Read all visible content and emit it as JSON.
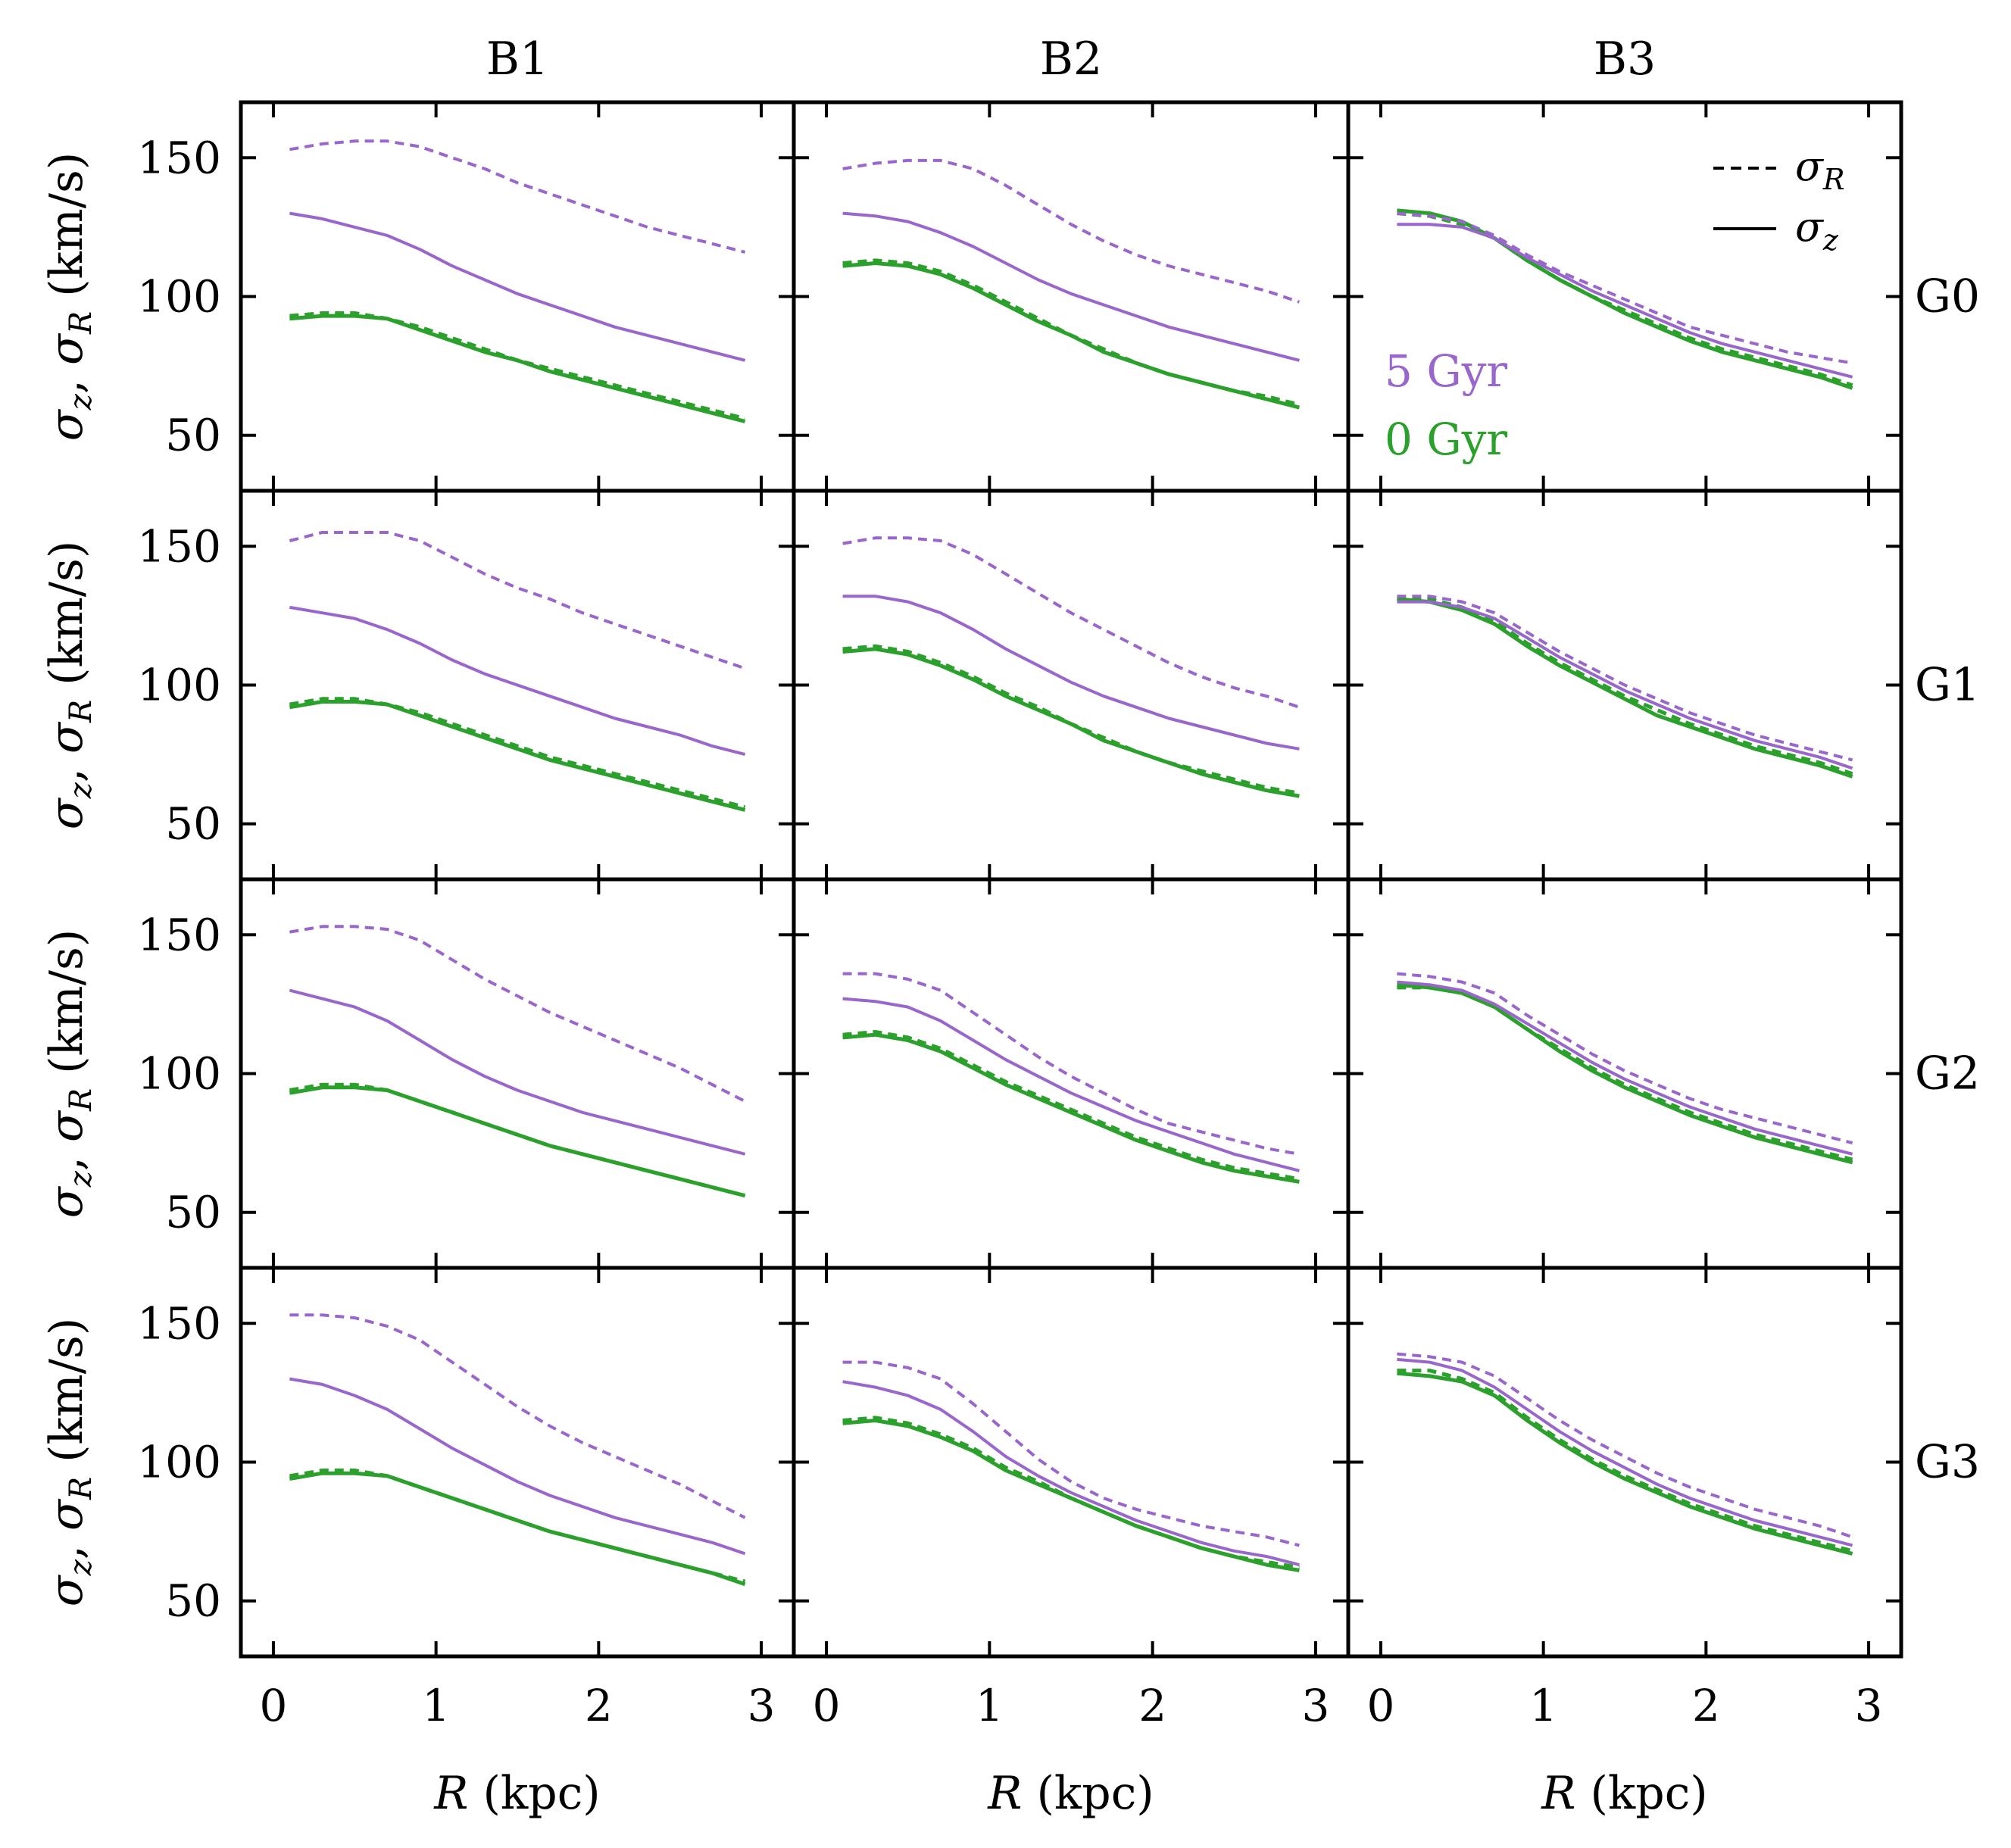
{
  "chart_data": {
    "type": "line",
    "layout": "grid 4 rows x 3 columns, shared axes",
    "column_titles": [
      "B1",
      "B2",
      "B3"
    ],
    "row_labels": [
      "G0",
      "G1",
      "G2",
      "G3"
    ],
    "xlabel": {
      "italic": "R",
      "rest": " (kpc)"
    },
    "ylabel": {
      "s1": "σ",
      "s1sub": "z",
      "sep": ", ",
      "s2": "σ",
      "s2sub": "R",
      "rest": " (km/s)"
    },
    "xlim": [
      -0.2,
      3.2
    ],
    "ylim": [
      30,
      170
    ],
    "xticks": [
      0,
      1,
      2,
      3
    ],
    "yticks": [
      50,
      100,
      150
    ],
    "grid": false,
    "colors": {
      "age_5": "#9966cc",
      "age_0": "#2ca02c"
    },
    "legend": {
      "placement": "top-right (panel B3/G0)",
      "entries": [
        {
          "sym": "σ",
          "sub": "R",
          "style": "dashed"
        },
        {
          "sym": "σ",
          "sub": "z",
          "style": "solid"
        }
      ]
    },
    "age_labels": [
      {
        "text": "5 Gyr",
        "color_key": "age_5"
      },
      {
        "text": "0 Gyr",
        "color_key": "age_0"
      }
    ],
    "x": [
      0.1,
      0.3,
      0.5,
      0.7,
      0.9,
      1.1,
      1.3,
      1.5,
      1.7,
      1.9,
      2.1,
      2.3,
      2.5,
      2.7,
      2.9
    ],
    "panels": [
      [
        {
          "s5R": [
            153,
            155,
            156,
            156,
            154,
            150,
            146,
            141,
            137,
            133,
            129,
            125,
            122,
            119,
            116
          ],
          "s5z": [
            130,
            128,
            125,
            122,
            117,
            111,
            106,
            101,
            97,
            93,
            89,
            86,
            83,
            80,
            77
          ],
          "s0R": [
            93,
            94,
            94,
            92,
            89,
            85,
            81,
            77,
            74,
            71,
            68,
            65,
            62,
            59,
            56
          ],
          "s0z": [
            92,
            93,
            93,
            92,
            88,
            84,
            80,
            77,
            73,
            70,
            67,
            64,
            61,
            58,
            55
          ]
        },
        {
          "s5R": [
            146,
            148,
            149,
            149,
            146,
            140,
            133,
            126,
            120,
            115,
            111,
            108,
            105,
            102,
            98
          ],
          "s5z": [
            130,
            129,
            127,
            123,
            118,
            112,
            106,
            101,
            97,
            93,
            89,
            86,
            83,
            80,
            77
          ],
          "s0R": [
            112,
            113,
            112,
            109,
            104,
            98,
            92,
            86,
            81,
            76,
            72,
            69,
            66,
            64,
            61
          ],
          "s0z": [
            111,
            112,
            111,
            108,
            103,
            97,
            91,
            86,
            80,
            76,
            72,
            69,
            66,
            63,
            60
          ]
        },
        {
          "s5R": [
            130,
            129,
            127,
            122,
            115,
            109,
            104,
            99,
            94,
            89,
            86,
            83,
            80,
            78,
            76
          ],
          "s5z": [
            126,
            126,
            125,
            121,
            114,
            108,
            102,
            97,
            92,
            87,
            83,
            80,
            77,
            74,
            71
          ],
          "s0R": [
            130,
            129,
            126,
            121,
            113,
            106,
            100,
            95,
            90,
            85,
            81,
            78,
            75,
            72,
            68
          ],
          "s0z": [
            131,
            130,
            127,
            121,
            113,
            106,
            100,
            94,
            89,
            84,
            80,
            77,
            74,
            71,
            67
          ]
        }
      ],
      [
        {
          "s5R": [
            152,
            155,
            155,
            155,
            152,
            146,
            140,
            135,
            131,
            126,
            122,
            118,
            114,
            110,
            106
          ],
          "s5z": [
            128,
            126,
            124,
            120,
            115,
            109,
            104,
            100,
            96,
            92,
            88,
            85,
            82,
            78,
            75
          ],
          "s0R": [
            93,
            95,
            95,
            93,
            90,
            86,
            82,
            78,
            74,
            71,
            68,
            65,
            62,
            59,
            56
          ],
          "s0z": [
            92,
            94,
            94,
            93,
            89,
            85,
            81,
            77,
            73,
            70,
            67,
            64,
            61,
            58,
            55
          ]
        },
        {
          "s5R": [
            151,
            153,
            153,
            152,
            147,
            140,
            133,
            126,
            120,
            114,
            108,
            103,
            99,
            96,
            92
          ],
          "s5z": [
            132,
            132,
            130,
            126,
            120,
            113,
            107,
            101,
            96,
            92,
            88,
            85,
            82,
            79,
            77
          ],
          "s0R": [
            113,
            114,
            112,
            108,
            103,
            97,
            92,
            86,
            81,
            76,
            72,
            69,
            66,
            63,
            61
          ],
          "s0z": [
            112,
            113,
            111,
            107,
            102,
            96,
            91,
            86,
            80,
            76,
            72,
            68,
            65,
            62,
            60
          ]
        },
        {
          "s5R": [
            132,
            132,
            130,
            126,
            119,
            112,
            106,
            100,
            95,
            90,
            86,
            82,
            79,
            76,
            73
          ],
          "s5z": [
            130,
            130,
            128,
            124,
            117,
            110,
            104,
            98,
            93,
            88,
            84,
            80,
            77,
            74,
            70
          ],
          "s0R": [
            131,
            131,
            128,
            123,
            115,
            108,
            102,
            96,
            91,
            86,
            82,
            78,
            75,
            72,
            68
          ],
          "s0z": [
            131,
            130,
            127,
            122,
            114,
            107,
            101,
            95,
            89,
            85,
            81,
            77,
            74,
            71,
            67
          ]
        }
      ],
      [
        {
          "s5R": [
            151,
            153,
            153,
            152,
            148,
            141,
            134,
            128,
            122,
            117,
            112,
            107,
            102,
            96,
            90
          ],
          "s5z": [
            130,
            127,
            124,
            119,
            112,
            105,
            99,
            94,
            90,
            86,
            83,
            80,
            77,
            74,
            71
          ],
          "s0R": [
            94,
            96,
            96,
            94,
            90,
            86,
            82,
            78,
            74,
            71,
            68,
            65,
            62,
            59,
            56
          ],
          "s0z": [
            93,
            95,
            95,
            94,
            90,
            86,
            82,
            78,
            74,
            71,
            68,
            65,
            62,
            59,
            56
          ]
        },
        {
          "s5R": [
            136,
            136,
            134,
            130,
            122,
            114,
            106,
            99,
            93,
            87,
            82,
            79,
            76,
            73,
            71
          ],
          "s5z": [
            127,
            126,
            124,
            119,
            112,
            105,
            99,
            93,
            88,
            83,
            79,
            75,
            71,
            68,
            65
          ],
          "s0R": [
            114,
            115,
            113,
            109,
            103,
            97,
            92,
            87,
            82,
            77,
            73,
            69,
            66,
            64,
            62
          ],
          "s0z": [
            113,
            114,
            112,
            108,
            102,
            96,
            91,
            86,
            81,
            76,
            72,
            68,
            65,
            63,
            61
          ]
        },
        {
          "s5R": [
            136,
            135,
            133,
            129,
            121,
            114,
            107,
            101,
            96,
            91,
            87,
            84,
            81,
            78,
            75
          ],
          "s5z": [
            133,
            132,
            130,
            125,
            118,
            111,
            104,
            98,
            93,
            88,
            84,
            80,
            77,
            74,
            71
          ],
          "s0R": [
            131,
            131,
            129,
            124,
            116,
            109,
            102,
            96,
            91,
            86,
            82,
            78,
            75,
            72,
            69
          ],
          "s0z": [
            132,
            131,
            129,
            124,
            116,
            108,
            101,
            95,
            90,
            85,
            81,
            77,
            74,
            71,
            68
          ]
        }
      ],
      [
        {
          "s5R": [
            153,
            153,
            152,
            149,
            144,
            136,
            128,
            120,
            113,
            107,
            102,
            97,
            92,
            86,
            80
          ],
          "s5z": [
            130,
            128,
            124,
            119,
            112,
            105,
            99,
            93,
            88,
            84,
            80,
            77,
            74,
            71,
            67
          ],
          "s0R": [
            95,
            97,
            97,
            95,
            91,
            87,
            83,
            79,
            75,
            72,
            69,
            66,
            63,
            60,
            57
          ],
          "s0z": [
            94,
            96,
            96,
            95,
            91,
            87,
            83,
            79,
            75,
            72,
            69,
            66,
            63,
            60,
            56
          ]
        },
        {
          "s5R": [
            136,
            136,
            134,
            130,
            121,
            111,
            101,
            93,
            87,
            83,
            80,
            77,
            75,
            73,
            70
          ],
          "s5z": [
            129,
            127,
            124,
            119,
            111,
            102,
            95,
            89,
            84,
            79,
            75,
            71,
            68,
            66,
            63
          ],
          "s0R": [
            115,
            116,
            114,
            110,
            105,
            98,
            93,
            87,
            82,
            77,
            73,
            69,
            66,
            64,
            62
          ],
          "s0z": [
            114,
            115,
            113,
            109,
            104,
            97,
            92,
            87,
            82,
            77,
            73,
            69,
            66,
            63,
            61
          ]
        },
        {
          "s5R": [
            139,
            138,
            136,
            131,
            123,
            115,
            108,
            102,
            96,
            91,
            87,
            83,
            80,
            77,
            73
          ],
          "s5z": [
            137,
            136,
            133,
            127,
            119,
            111,
            104,
            98,
            92,
            87,
            83,
            79,
            76,
            73,
            70
          ],
          "s0R": [
            133,
            133,
            130,
            125,
            116,
            108,
            101,
            95,
            90,
            85,
            81,
            77,
            74,
            71,
            68
          ],
          "s0z": [
            132,
            131,
            129,
            124,
            115,
            107,
            100,
            94,
            89,
            84,
            80,
            76,
            73,
            70,
            67
          ]
        }
      ]
    ]
  }
}
